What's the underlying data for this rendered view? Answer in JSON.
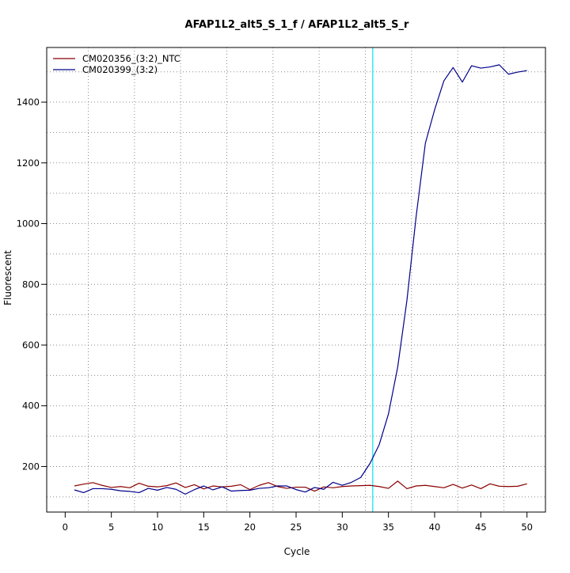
{
  "chart_data": {
    "type": "line",
    "title": "AFAP1L2_alt5_S_1_f / AFAP1L2_alt5_S_r",
    "xlabel": "Cycle",
    "ylabel": "Fluorescent",
    "xlim": [
      -2,
      52
    ],
    "ylim": [
      50,
      1580
    ],
    "x_ticks": [
      0,
      5,
      10,
      15,
      20,
      25,
      30,
      35,
      40,
      45,
      50
    ],
    "y_ticks": [
      200,
      400,
      600,
      800,
      1000,
      1200,
      1400
    ],
    "grid": true,
    "grid_style": "dotted",
    "legend_position": "top-left",
    "x": [
      1,
      2,
      3,
      4,
      5,
      6,
      7,
      8,
      9,
      10,
      11,
      12,
      13,
      14,
      15,
      16,
      17,
      18,
      19,
      20,
      21,
      22,
      23,
      24,
      25,
      26,
      27,
      28,
      29,
      30,
      31,
      32,
      33,
      34,
      35,
      36,
      37,
      38,
      39,
      40,
      41,
      42,
      43,
      44,
      45,
      46,
      47,
      48,
      49,
      50
    ],
    "series": [
      {
        "name": "CM020356_(3:2)_NTC",
        "color": "#8b0000",
        "values": [
          136,
          142,
          147,
          138,
          131,
          134,
          130,
          145,
          135,
          133,
          137,
          146,
          131,
          140,
          126,
          136,
          133,
          135,
          140,
          124,
          138,
          147,
          134,
          128,
          132,
          132,
          119,
          133,
          130,
          134,
          136,
          137,
          138,
          134,
          128,
          152,
          127,
          136,
          138,
          134,
          130,
          141,
          129,
          139,
          127,
          143,
          135,
          134,
          135,
          143
        ]
      },
      {
        "name": "CM020399_(3:2)",
        "color": "#00008b",
        "values": [
          123,
          114,
          127,
          127,
          125,
          120,
          118,
          114,
          128,
          122,
          131,
          125,
          109,
          124,
          136,
          123,
          133,
          119,
          121,
          122,
          128,
          130,
          136,
          136,
          124,
          116,
          131,
          125,
          148,
          138,
          148,
          164,
          210,
          272,
          373,
          527,
          747,
          1024,
          1265,
          1375,
          1470,
          1514,
          1466,
          1520,
          1512,
          1516,
          1523,
          1492,
          1499,
          1504
        ]
      }
    ],
    "vertical_marker": {
      "x": 33.3,
      "color": "#00e5ee"
    }
  }
}
